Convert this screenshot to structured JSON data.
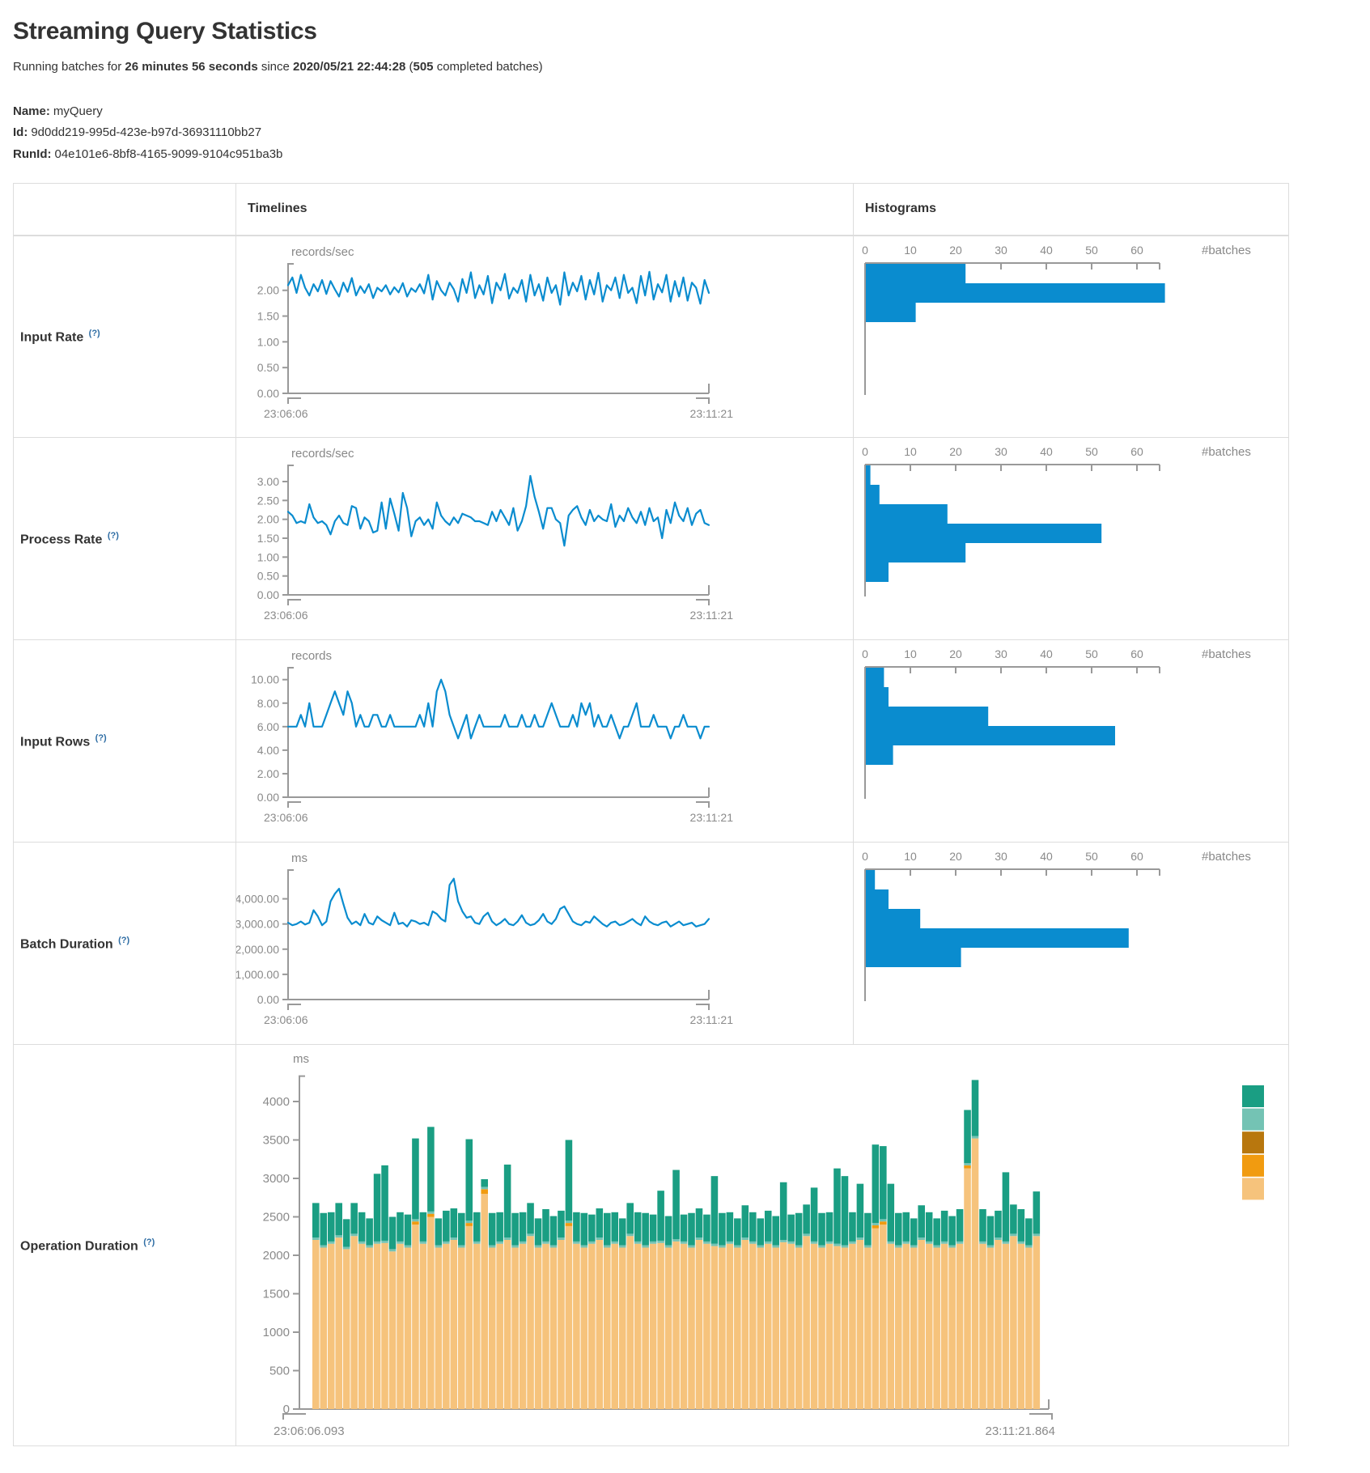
{
  "page": {
    "title": "Streaming Query Statistics",
    "running_prefix": "Running batches for ",
    "duration": "26 minutes 56 seconds",
    "since": " since ",
    "start_time": "2020/05/21 22:44:28",
    "paren_open": " (",
    "completed_count": "505",
    "completed_suffix": " completed batches)",
    "name_label": "Name:",
    "name_value": "myQuery",
    "id_label": "Id:",
    "id_value": "9d0dd219-995d-423e-b97d-36931110bb27",
    "runid_label": "RunId:",
    "runid_value": "04e101e6-8bf8-4165-9099-9104c951ba3b"
  },
  "table": {
    "header": {
      "col_timelines": "Timelines",
      "col_histograms": "Histograms"
    },
    "help_marker": "(?)",
    "rows": [
      {
        "label": "Input Rate"
      },
      {
        "label": "Process Rate"
      },
      {
        "label": "Input Rows"
      },
      {
        "label": "Batch Duration"
      },
      {
        "label": "Operation Duration"
      }
    ]
  },
  "colors": {
    "accent_blue": "#0a8ccf",
    "axis_gray": "#999999",
    "text_gray": "#8a8a8a",
    "border": "#dddddd",
    "stack": {
      "teal": "#1a9e83",
      "light_teal": "#74c3b4",
      "dark_orange": "#b8770e",
      "orange": "#f19b10",
      "tan": "#f6c37c"
    }
  },
  "chart_data": [
    {
      "row": "Input Rate",
      "timeline": {
        "type": "line",
        "unit": "records/sec",
        "x_start": "23:06:06",
        "x_end": "23:11:21",
        "ymax": 2.42,
        "ytick_values": [
          0,
          0.5,
          1,
          1.5,
          2
        ],
        "ytick_labels": [
          "0.00",
          "0.50",
          "1.00",
          "1.50",
          "2.00"
        ],
        "values": [
          2.1,
          2.25,
          1.95,
          2.3,
          2.05,
          1.9,
          2.12,
          1.98,
          2.2,
          1.93,
          2.18,
          2.02,
          1.88,
          2.15,
          1.97,
          2.24,
          1.9,
          2.08,
          1.95,
          2.12,
          1.85,
          2.05,
          1.98,
          2.1,
          1.92,
          2.06,
          1.96,
          2.14,
          1.88,
          2.04,
          1.97,
          2.12,
          1.94,
          2.3,
          1.82,
          2.18,
          2.0,
          1.9,
          2.15,
          2.02,
          1.78,
          2.22,
          1.95,
          2.35,
          1.85,
          2.1,
          1.92,
          2.28,
          1.75,
          2.15,
          2.0,
          2.32,
          1.84,
          2.05,
          1.95,
          2.2,
          1.78,
          2.3,
          1.9,
          2.12,
          1.8,
          2.25,
          1.95,
          2.1,
          1.72,
          2.35,
          1.9,
          2.15,
          1.98,
          2.28,
          1.82,
          2.2,
          1.92,
          2.34,
          1.78,
          2.1,
          2.0,
          2.25,
          1.85,
          2.3,
          1.95,
          2.05,
          1.75,
          2.28,
          1.9,
          2.36,
          1.82,
          2.12,
          1.96,
          2.3,
          1.78,
          2.18,
          1.88,
          2.25,
          1.8,
          2.15,
          2.05,
          1.74,
          2.2,
          1.95
        ]
      },
      "histogram": {
        "type": "bar",
        "xlabel": "#batches",
        "xticks": [
          0,
          10,
          20,
          30,
          40,
          50,
          60
        ],
        "bin_counts": [
          22,
          66,
          11
        ]
      }
    },
    {
      "row": "Process Rate",
      "timeline": {
        "type": "line",
        "unit": "records/sec",
        "x_start": "23:06:06",
        "x_end": "23:11:21",
        "ymax": 3.3,
        "ytick_values": [
          0,
          0.5,
          1,
          1.5,
          2,
          2.5,
          3
        ],
        "ytick_labels": [
          "0.00",
          "0.50",
          "1.00",
          "1.50",
          "2.00",
          "2.50",
          "3.00"
        ],
        "values": [
          2.2,
          2.1,
          1.9,
          1.95,
          1.9,
          2.4,
          2.05,
          1.9,
          1.95,
          1.85,
          1.6,
          1.95,
          2.1,
          1.9,
          1.85,
          2.35,
          2.3,
          1.75,
          2.05,
          1.95,
          1.65,
          1.7,
          2.45,
          1.75,
          2.55,
          2.15,
          1.7,
          2.7,
          2.3,
          1.55,
          1.95,
          2.05,
          1.85,
          2.0,
          1.75,
          2.45,
          2.1,
          1.95,
          1.85,
          2.05,
          1.9,
          2.15,
          2.1,
          2.05,
          1.95,
          1.95,
          1.9,
          1.85,
          2.2,
          1.95,
          2.25,
          2.05,
          1.85,
          2.3,
          1.7,
          1.95,
          2.35,
          3.15,
          2.6,
          2.2,
          1.75,
          2.3,
          2.3,
          2.0,
          1.9,
          1.3,
          2.1,
          2.25,
          2.35,
          2.05,
          1.85,
          2.25,
          1.95,
          2.1,
          2.0,
          1.95,
          2.4,
          1.8,
          2.1,
          1.95,
          2.3,
          2.05,
          1.9,
          2.2,
          1.85,
          2.3,
          1.95,
          2.05,
          1.5,
          2.25,
          1.9,
          2.45,
          2.1,
          1.95,
          2.3,
          1.85,
          2.15,
          2.25,
          1.9,
          1.85
        ]
      },
      "histogram": {
        "type": "bar",
        "xlabel": "#batches",
        "xticks": [
          0,
          10,
          20,
          30,
          40,
          50,
          60
        ],
        "bin_counts": [
          1,
          3,
          18,
          52,
          22,
          5
        ]
      }
    },
    {
      "row": "Input Rows",
      "timeline": {
        "type": "line",
        "unit": "records",
        "x_start": "23:06:06",
        "x_end": "23:11:21",
        "ymax": 10.6,
        "ytick_values": [
          0,
          2,
          4,
          6,
          8,
          10
        ],
        "ytick_labels": [
          "0.00",
          "2.00",
          "4.00",
          "6.00",
          "8.00",
          "10.00"
        ],
        "values": [
          6,
          6,
          6,
          7,
          6,
          8,
          6,
          6,
          6,
          7,
          8,
          9,
          8,
          7,
          9,
          8,
          6,
          7,
          6,
          6,
          7,
          7,
          6,
          6,
          7,
          6,
          6,
          6,
          6,
          6,
          6,
          7,
          6,
          8,
          6,
          9,
          10,
          9,
          7,
          6,
          5,
          6,
          7,
          5,
          6,
          7,
          6,
          6,
          6,
          6,
          6,
          7,
          6,
          6,
          6,
          7,
          6,
          6,
          7,
          6,
          6,
          7,
          8,
          7,
          6,
          6,
          6,
          7,
          6,
          8,
          7,
          8,
          6,
          7,
          6,
          6,
          7,
          6,
          5,
          6,
          6,
          7,
          8,
          6,
          6,
          6,
          7,
          6,
          6,
          6,
          5,
          6,
          6,
          7,
          6,
          6,
          6,
          5,
          6,
          6
        ]
      },
      "histogram": {
        "type": "bar",
        "xlabel": "#batches",
        "xticks": [
          0,
          10,
          20,
          30,
          40,
          50,
          60
        ],
        "bin_counts": [
          4,
          5,
          27,
          55,
          6
        ]
      }
    },
    {
      "row": "Batch Duration",
      "timeline": {
        "type": "line",
        "unit": "ms",
        "x_start": "23:06:06",
        "x_end": "23:11:21",
        "ymax": 4950,
        "ytick_values": [
          0,
          1000,
          2000,
          3000,
          4000
        ],
        "ytick_labels": [
          "0.00",
          "1,000.00",
          "2,000.00",
          "3,000.00",
          "4,000.00"
        ],
        "values": [
          3050,
          2950,
          3000,
          3100,
          2980,
          3050,
          3550,
          3300,
          2950,
          3100,
          3900,
          4200,
          4400,
          3800,
          3250,
          3000,
          3100,
          2950,
          3400,
          3050,
          2980,
          3300,
          3150,
          3050,
          2950,
          3450,
          3000,
          3050,
          2900,
          3150,
          3100,
          3000,
          3050,
          2950,
          3500,
          3400,
          3200,
          3100,
          4550,
          4800,
          3900,
          3500,
          3250,
          3300,
          3050,
          3000,
          3300,
          3450,
          3100,
          2950,
          3050,
          3200,
          3000,
          2950,
          3100,
          3350,
          3050,
          2950,
          3000,
          3150,
          3400,
          3100,
          3000,
          3200,
          3600,
          3700,
          3400,
          3100,
          3000,
          2950,
          3100,
          3050,
          3300,
          3150,
          3000,
          2900,
          3050,
          3100,
          2950,
          3000,
          3100,
          3200,
          3050,
          2950,
          3300,
          3100,
          3000,
          2950,
          3050,
          3100,
          2900,
          3000,
          3100,
          2950,
          3000,
          3050,
          2900,
          2950,
          3000,
          3200
        ]
      },
      "histogram": {
        "type": "bar",
        "xlabel": "#batches",
        "xticks": [
          0,
          10,
          20,
          30,
          40,
          50,
          60
        ],
        "bin_counts": [
          2,
          5,
          12,
          58,
          21
        ]
      }
    },
    {
      "row": "Operation Duration",
      "timeline": {
        "type": "stacked_bar",
        "unit": "ms",
        "x_start": "23:06:06.093",
        "x_end": "23:11:21.864",
        "ymax": 4400,
        "ytick_values": [
          0,
          500,
          1000,
          1500,
          2000,
          2500,
          3000,
          3500,
          4000
        ],
        "ytick_labels": [
          "0",
          "500",
          "1000",
          "1500",
          "2000",
          "2500",
          "3000",
          "3500",
          "4000"
        ],
        "legend_colors": [
          "teal",
          "light_teal",
          "dark_orange",
          "orange",
          "tan"
        ],
        "series": [
          {
            "name": "segment-tan",
            "color_key": "tan",
            "values": [
              2200,
              2100,
              2150,
              2230,
              2080,
              2250,
              2150,
              2100,
              2150,
              2160,
              2050,
              2150,
              2100,
              2400,
              2150,
              2500,
              2100,
              2150,
              2200,
              2100,
              2380,
              2150,
              2800,
              2100,
              2150,
              2200,
              2100,
              2150,
              2250,
              2100,
              2150,
              2100,
              2200,
              2380,
              2150,
              2100,
              2150,
              2200,
              2100,
              2150,
              2100,
              2250,
              2150,
              2100,
              2150,
              2160,
              2100,
              2180,
              2150,
              2100,
              2200,
              2150,
              2120,
              2100,
              2150,
              2100,
              2200,
              2150,
              2100,
              2150,
              2100,
              2170,
              2150,
              2100,
              2250,
              2150,
              2100,
              2150,
              2120,
              2100,
              2150,
              2200,
              2100,
              2350,
              2400,
              2150,
              2100,
              2150,
              2100,
              2200,
              2150,
              2100,
              2150,
              2100,
              2150,
              3130,
              3520,
              2150,
              2100,
              2200,
              2150,
              2250,
              2150,
              2100,
              2250
            ]
          },
          {
            "name": "segment-orange",
            "color_key": "orange",
            "values": [
              0,
              0,
              0,
              0,
              0,
              0,
              0,
              0,
              0,
              0,
              0,
              0,
              0,
              40,
              0,
              40,
              0,
              0,
              0,
              0,
              40,
              0,
              60,
              0,
              0,
              0,
              0,
              0,
              0,
              0,
              0,
              0,
              0,
              40,
              0,
              0,
              0,
              0,
              0,
              0,
              0,
              0,
              0,
              0,
              0,
              0,
              0,
              0,
              0,
              0,
              0,
              0,
              0,
              0,
              0,
              0,
              0,
              0,
              0,
              0,
              0,
              0,
              0,
              0,
              0,
              0,
              0,
              0,
              0,
              0,
              0,
              0,
              0,
              40,
              40,
              0,
              0,
              0,
              0,
              0,
              0,
              0,
              0,
              0,
              0,
              40,
              0,
              0,
              0,
              0,
              0,
              0,
              0,
              0,
              0
            ]
          },
          {
            "name": "segment-light-teal",
            "color_key": "light_teal",
            "constant": 30
          },
          {
            "name": "segment-teal",
            "color_key": "teal",
            "values": [
              450,
              420,
              380,
              420,
              360,
              400,
              380,
              350,
              880,
              980,
              420,
              380,
              400,
              1050,
              380,
              1100,
              350,
              400,
              380,
              420,
              1060,
              380,
              100,
              420,
              380,
              950,
              420,
              380,
              400,
              350,
              420,
              380,
              350,
              1050,
              380,
              420,
              350,
              380,
              420,
              380,
              350,
              400,
              380,
              420,
              350,
              650,
              380,
              900,
              350,
              420,
              380,
              350,
              880,
              420,
              380,
              350,
              420,
              380,
              350,
              400,
              380,
              750,
              350,
              420,
              380,
              700,
              420,
              380,
              980,
              900,
              380,
              700,
              420,
              1020,
              950,
              750,
              420,
              380,
              350,
              420,
              380,
              350,
              400,
              380,
              420,
              690,
              730,
              420,
              380,
              350,
              900,
              380,
              420,
              350,
              550
            ]
          }
        ]
      }
    }
  ]
}
